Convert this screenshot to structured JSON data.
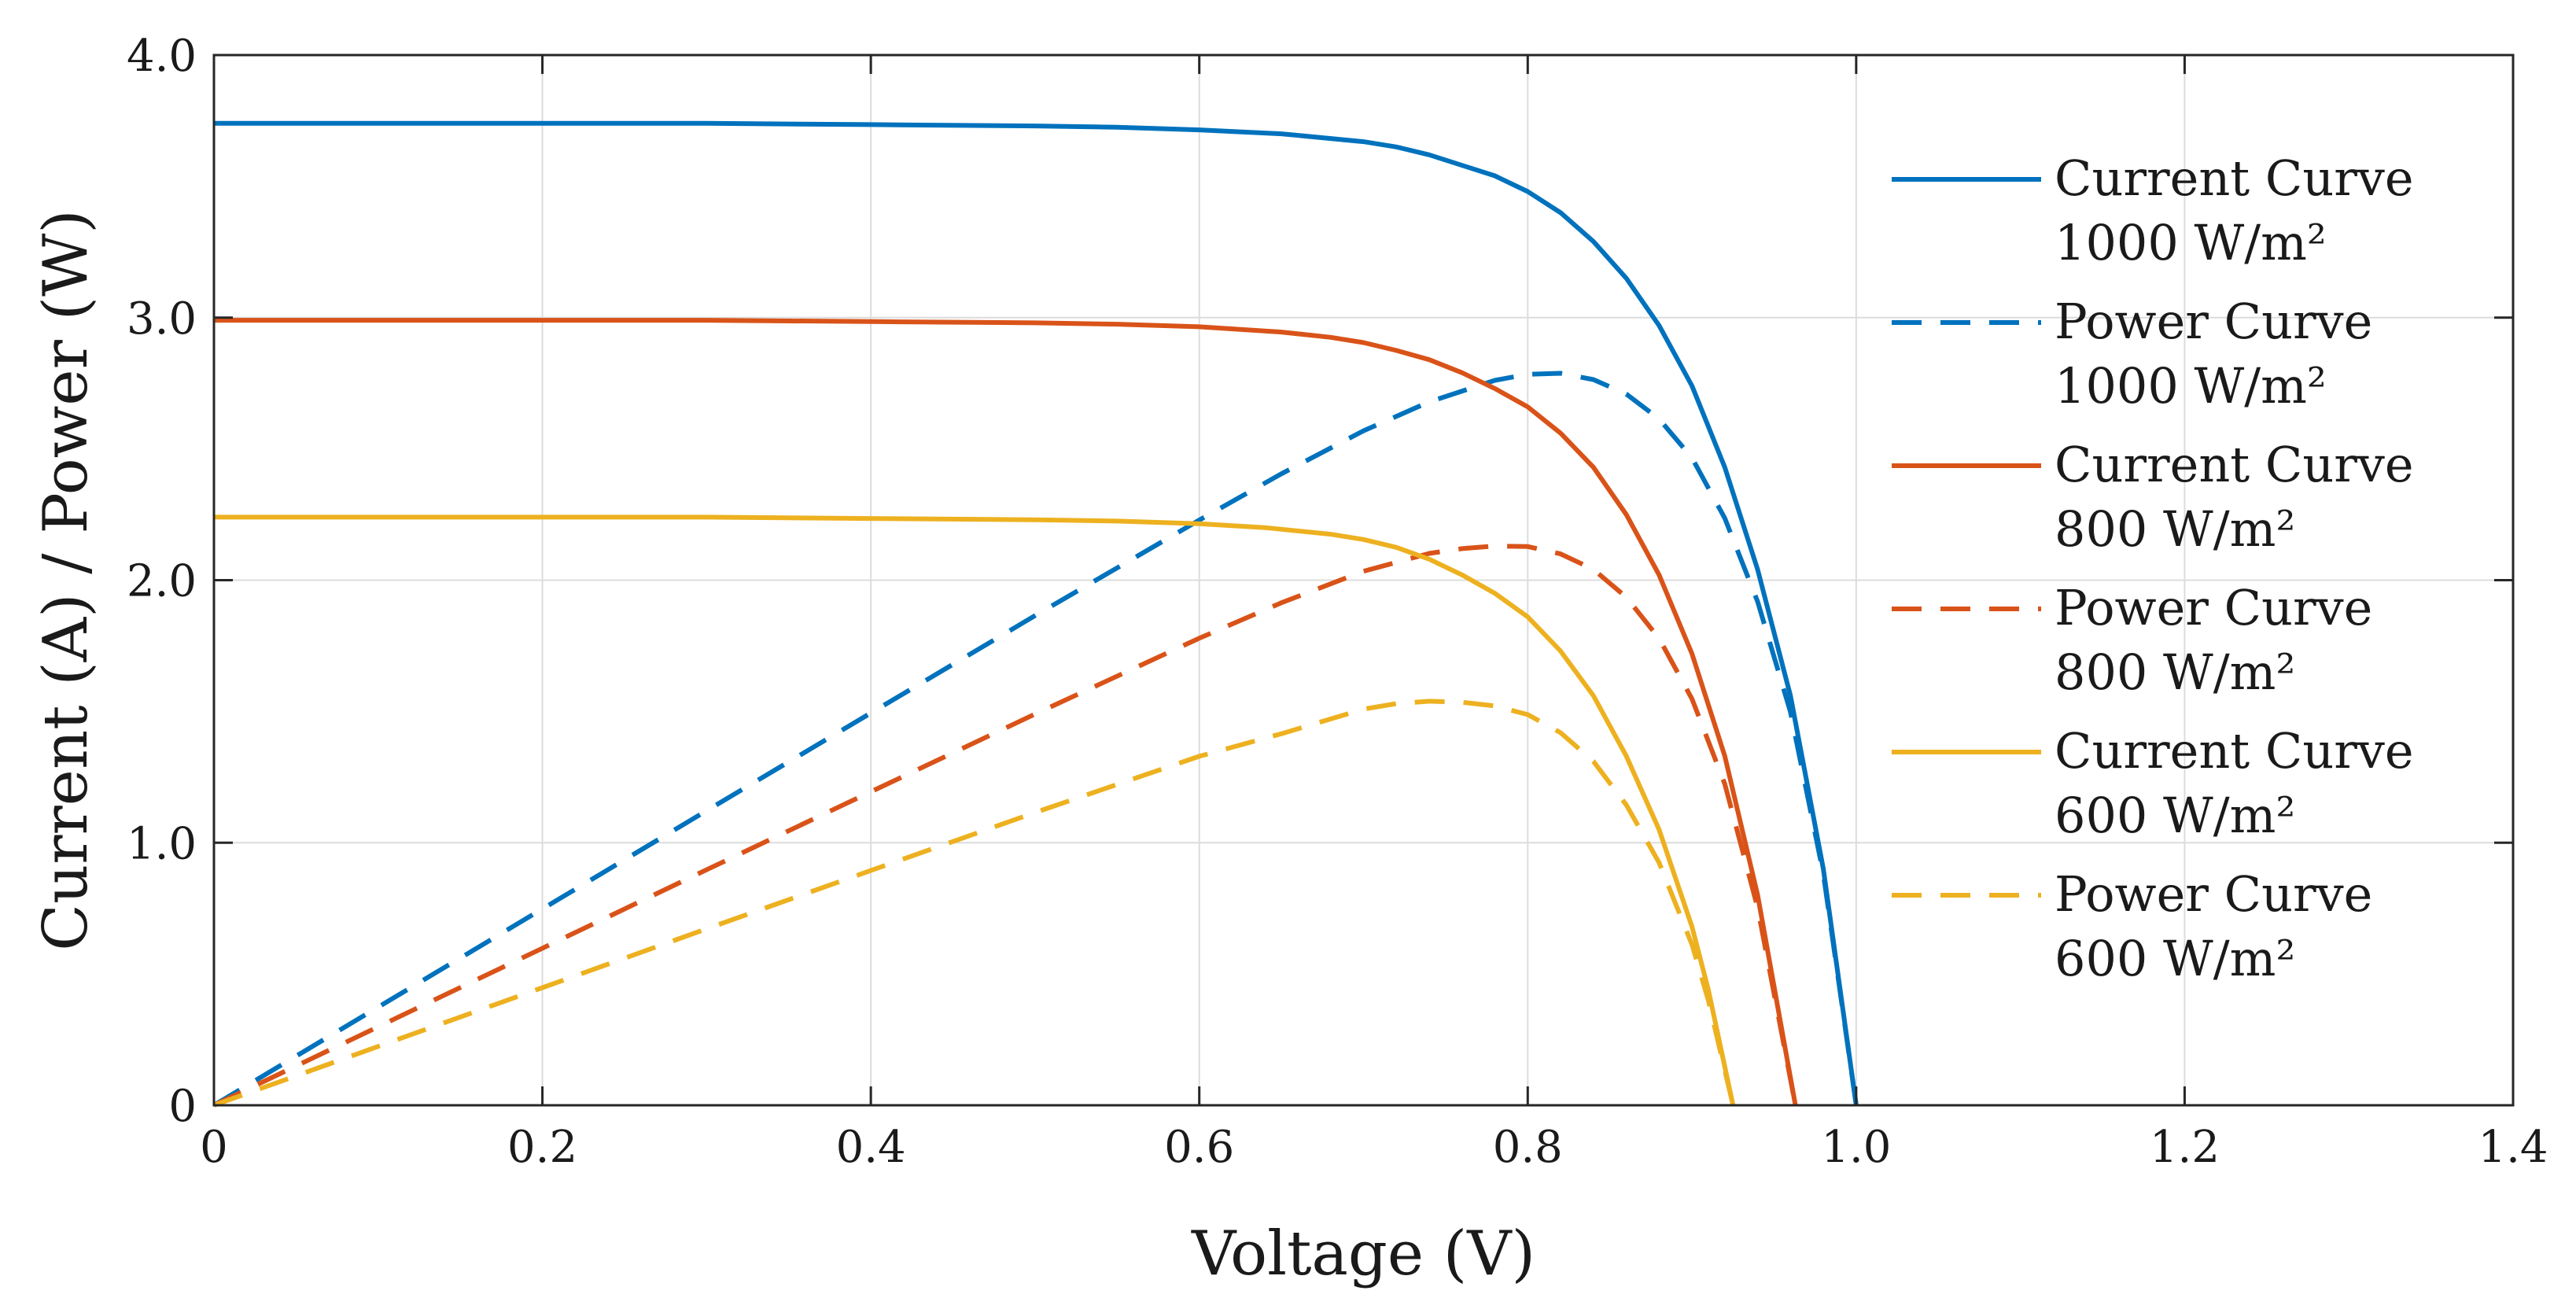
{
  "chart_data": {
    "type": "line",
    "title": "",
    "xlabel": "Voltage (V)",
    "ylabel": "Current (A) / Power (W)",
    "xlim": [
      0,
      1.4
    ],
    "ylim": [
      0,
      4.0
    ],
    "grid": true,
    "legend_position": "right",
    "x_ticks": [
      0,
      0.2,
      0.4,
      0.6,
      0.8,
      1.0,
      1.2,
      1.4
    ],
    "x_tick_labels": [
      "0",
      "0.2",
      "0.4",
      "0.6",
      "0.8",
      "1.0",
      "1.2",
      "1.4"
    ],
    "y_ticks": [
      0,
      1.0,
      2.0,
      3.0,
      4.0
    ],
    "y_tick_labels": [
      "0",
      "1.0",
      "2.0",
      "3.0",
      "4.0"
    ],
    "series": [
      {
        "name": "Current Curve 1000 W/m²",
        "label_lines": [
          "Current Curve",
          "1000 W/m²"
        ],
        "color": "#0072BD",
        "dash": "solid",
        "x": [
          0,
          0.1,
          0.2,
          0.3,
          0.4,
          0.5,
          0.55,
          0.6,
          0.65,
          0.7,
          0.72,
          0.74,
          0.76,
          0.78,
          0.8,
          0.82,
          0.84,
          0.86,
          0.88,
          0.9,
          0.92,
          0.94,
          0.96,
          0.98,
          1.0
        ],
        "y": [
          3.74,
          3.74,
          3.74,
          3.74,
          3.735,
          3.73,
          3.725,
          3.715,
          3.7,
          3.67,
          3.65,
          3.62,
          3.58,
          3.54,
          3.48,
          3.4,
          3.29,
          3.15,
          2.97,
          2.74,
          2.43,
          2.04,
          1.56,
          0.9,
          0.0
        ]
      },
      {
        "name": "Power Curve 1000 W/m²",
        "label_lines": [
          "Power Curve",
          "1000 W/m²"
        ],
        "color": "#0072BD",
        "dash": "dashed",
        "x": [
          0,
          0.1,
          0.2,
          0.3,
          0.4,
          0.5,
          0.6,
          0.65,
          0.7,
          0.74,
          0.78,
          0.8,
          0.82,
          0.84,
          0.86,
          0.88,
          0.9,
          0.92,
          0.94,
          0.96,
          0.98,
          1.0
        ],
        "y": [
          0.0,
          0.374,
          0.748,
          1.122,
          1.494,
          1.865,
          2.229,
          2.405,
          2.569,
          2.679,
          2.761,
          2.784,
          2.788,
          2.764,
          2.709,
          2.614,
          2.466,
          2.236,
          1.918,
          1.498,
          0.882,
          0.0
        ]
      },
      {
        "name": "Current Curve 800 W/m²",
        "label_lines": [
          "Current Curve",
          "800 W/m²"
        ],
        "color": "#D95319",
        "dash": "solid",
        "x": [
          0,
          0.1,
          0.2,
          0.3,
          0.4,
          0.5,
          0.55,
          0.6,
          0.65,
          0.68,
          0.7,
          0.72,
          0.74,
          0.76,
          0.78,
          0.8,
          0.82,
          0.84,
          0.86,
          0.88,
          0.9,
          0.92,
          0.94,
          0.963
        ],
        "y": [
          2.99,
          2.99,
          2.99,
          2.99,
          2.985,
          2.98,
          2.975,
          2.965,
          2.945,
          2.925,
          2.905,
          2.875,
          2.84,
          2.79,
          2.73,
          2.66,
          2.56,
          2.43,
          2.25,
          2.02,
          1.72,
          1.33,
          0.8,
          0.0
        ]
      },
      {
        "name": "Power Curve 800 W/m²",
        "label_lines": [
          "Power Curve",
          "800 W/m²"
        ],
        "color": "#D95319",
        "dash": "dashed",
        "x": [
          0,
          0.1,
          0.2,
          0.3,
          0.4,
          0.5,
          0.6,
          0.65,
          0.7,
          0.74,
          0.76,
          0.78,
          0.8,
          0.82,
          0.84,
          0.86,
          0.88,
          0.9,
          0.92,
          0.94,
          0.963
        ],
        "y": [
          0.0,
          0.299,
          0.598,
          0.897,
          1.194,
          1.49,
          1.779,
          1.914,
          2.034,
          2.102,
          2.12,
          2.13,
          2.128,
          2.1,
          2.041,
          1.935,
          1.778,
          1.548,
          1.224,
          0.752,
          0.0
        ]
      },
      {
        "name": "Current Curve 600 W/m²",
        "label_lines": [
          "Current Curve",
          "600 W/m²"
        ],
        "color": "#EDB120",
        "dash": "solid",
        "x": [
          0,
          0.1,
          0.2,
          0.3,
          0.4,
          0.5,
          0.55,
          0.6,
          0.64,
          0.68,
          0.7,
          0.72,
          0.74,
          0.76,
          0.78,
          0.8,
          0.82,
          0.84,
          0.86,
          0.88,
          0.9,
          0.91,
          0.925
        ],
        "y": [
          2.24,
          2.24,
          2.24,
          2.24,
          2.235,
          2.23,
          2.225,
          2.215,
          2.2,
          2.175,
          2.155,
          2.125,
          2.08,
          2.02,
          1.95,
          1.86,
          1.73,
          1.56,
          1.33,
          1.05,
          0.68,
          0.44,
          0.0
        ]
      },
      {
        "name": "Power Curve 600 W/m²",
        "label_lines": [
          "Power Curve",
          "600 W/m²"
        ],
        "color": "#EDB120",
        "dash": "dashed",
        "x": [
          0,
          0.1,
          0.2,
          0.3,
          0.4,
          0.5,
          0.6,
          0.65,
          0.7,
          0.72,
          0.74,
          0.76,
          0.78,
          0.8,
          0.82,
          0.84,
          0.86,
          0.88,
          0.9,
          0.91,
          0.925
        ],
        "y": [
          0.0,
          0.224,
          0.448,
          0.672,
          0.894,
          1.115,
          1.329,
          1.415,
          1.509,
          1.53,
          1.539,
          1.535,
          1.521,
          1.488,
          1.419,
          1.31,
          1.144,
          0.924,
          0.612,
          0.4,
          0.0
        ]
      }
    ]
  }
}
